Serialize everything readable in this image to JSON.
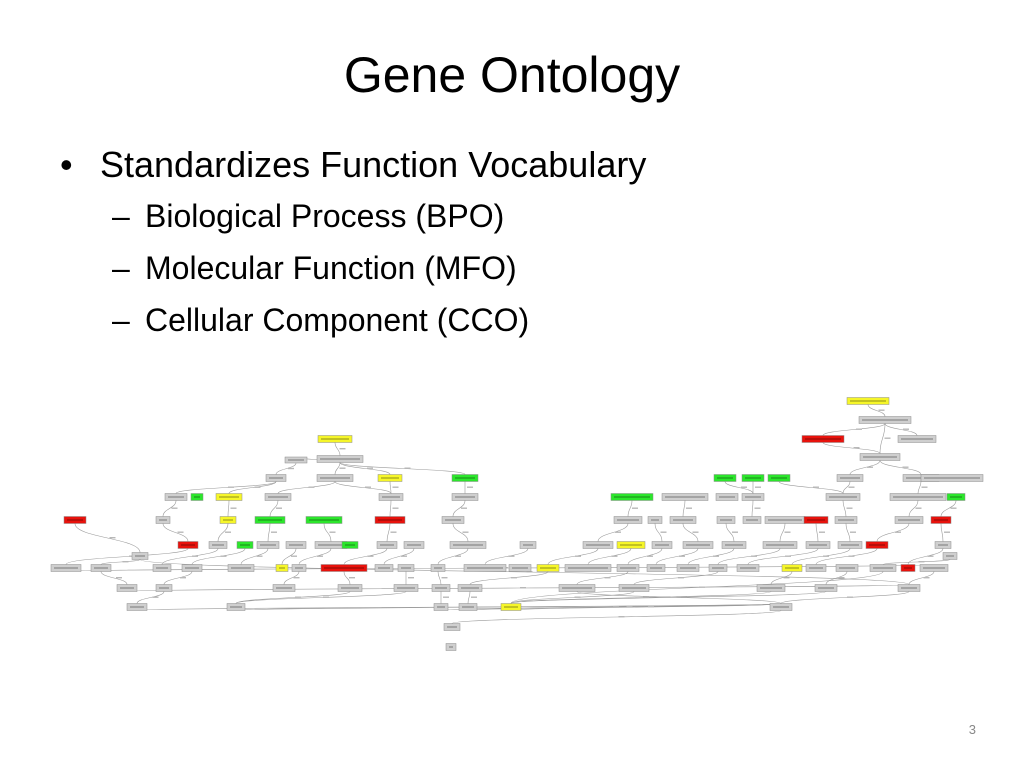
{
  "slide": {
    "title": "Gene Ontology",
    "bullet": "Standardizes Function Vocabulary",
    "subbullets": [
      "Biological Process (BPO)",
      "Molecular Function (MFO)",
      "Cellular Component (CCO)"
    ],
    "page_number": "3"
  },
  "bullet_glyphs": {
    "main": "•",
    "sub": "–"
  },
  "graph": {
    "colors": {
      "gray": "#cfcfcf",
      "red": "#e8120c",
      "green": "#2ce62c",
      "yellow": "#f6f629",
      "edge": "#9a9a9a",
      "stroke": "#8c8c8c"
    }
  }
}
